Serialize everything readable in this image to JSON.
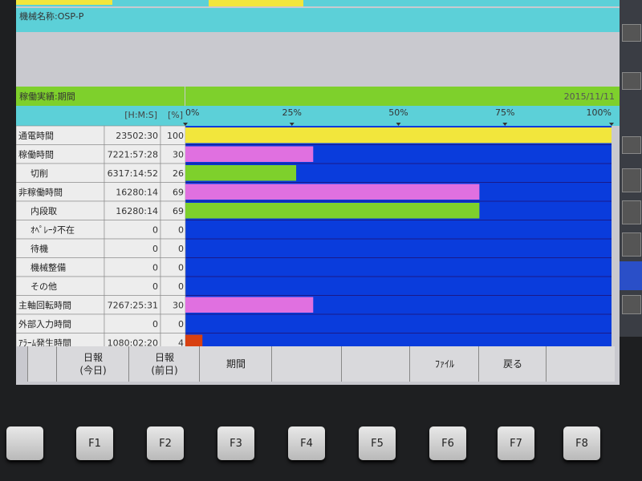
{
  "header": {
    "machine_name": "機械名称:OSP-P"
  },
  "panel": {
    "title": "稼働実績:期間",
    "date": "2015/11/11",
    "col_time": "[H:M:S]",
    "col_pct": "[%]",
    "xlim": [
      0,
      100
    ],
    "xticks": [
      {
        "value": 0,
        "label": "0%"
      },
      {
        "value": 25,
        "label": "25%"
      },
      {
        "value": 50,
        "label": "50%"
      },
      {
        "value": 75,
        "label": "75%"
      },
      {
        "value": 100,
        "label": "100%"
      }
    ],
    "rows": [
      {
        "label": "通電時間",
        "time": "23502:30",
        "percent": 100,
        "color": "#f2e63c"
      },
      {
        "label": "稼働時間",
        "time": "7221:57:28",
        "percent": 30,
        "color": "#e070e0"
      },
      {
        "label": "切削",
        "time": "6317:14:52",
        "percent": 26,
        "color": "#7ed02c"
      },
      {
        "label": "非稼働時間",
        "time": "16280:14",
        "percent": 69,
        "color": "#e070e0"
      },
      {
        "label": "内段取",
        "time": "16280:14",
        "percent": 69,
        "color": "#7ed02c"
      },
      {
        "label": "ｵﾍﾟﾚｰﾀ不在",
        "time": "0",
        "percent": 0
      },
      {
        "label": "待機",
        "time": "0",
        "percent": 0
      },
      {
        "label": "機械整備",
        "time": "0",
        "percent": 0
      },
      {
        "label": "その他",
        "time": "0",
        "percent": 0
      },
      {
        "label": "主軸回転時間",
        "time": "7267:25:31",
        "percent": 30,
        "color": "#e070e0"
      },
      {
        "label": "外部入力時間",
        "time": "0",
        "percent": 0
      },
      {
        "label": "ｱﾗｰﾑ発生時間",
        "time": "1080:02:20",
        "percent": 4,
        "color": "#d84010"
      }
    ]
  },
  "softkeys": {
    "today": {
      "line1": "日報",
      "line2": "(今日)"
    },
    "yesterday": {
      "line1": "日報",
      "line2": "(前日)"
    },
    "period": "期間",
    "file": "ﾌｧｲﾙ",
    "back": "戻る"
  },
  "function_keys": [
    "F1",
    "F2",
    "F3",
    "F4",
    "F5",
    "F6",
    "F7",
    "F8"
  ]
}
